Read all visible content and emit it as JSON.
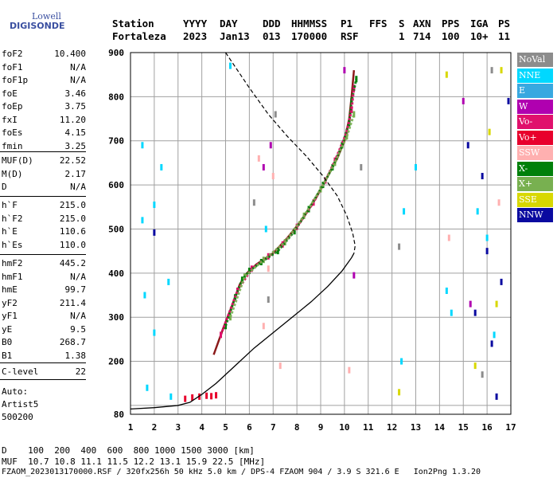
{
  "logo": {
    "top": "Lowell",
    "bottom": "DIGISONDE"
  },
  "header": {
    "row1": [
      "Station",
      "YYYY",
      "DAY",
      "DDD",
      "HHMMSS",
      "P1",
      "FFS",
      "S",
      "AXN",
      "PPS",
      "IGA",
      "PS"
    ],
    "row2": [
      "Fortaleza",
      "2023",
      "Jan13",
      "013",
      "170000",
      "RSF",
      "",
      "1",
      "714",
      "100",
      "10+",
      "11"
    ]
  },
  "params": [
    {
      "k": "foF2",
      "v": "10.400"
    },
    {
      "k": "foF1",
      "v": "N/A"
    },
    {
      "k": "foF1p",
      "v": "N/A"
    },
    {
      "k": "foE",
      "v": "3.46"
    },
    {
      "k": "foEp",
      "v": "3.75"
    },
    {
      "k": "fxI",
      "v": "11.20"
    },
    {
      "k": "foEs",
      "v": "4.15"
    },
    {
      "k": "fmin",
      "v": "3.25"
    },
    {
      "k": "MUF(D)",
      "v": "22.52"
    },
    {
      "k": "M(D)",
      "v": "2.17"
    },
    {
      "k": "D",
      "v": "N/A"
    },
    {
      "k": "h`F",
      "v": "215.0"
    },
    {
      "k": "h`F2",
      "v": "215.0"
    },
    {
      "k": "h`E",
      "v": "110.6"
    },
    {
      "k": "h`Es",
      "v": "110.0"
    },
    {
      "k": "hmF2",
      "v": "445.2"
    },
    {
      "k": "hmF1",
      "v": "N/A"
    },
    {
      "k": "hmE",
      "v": "99.7"
    },
    {
      "k": "yF2",
      "v": "211.4"
    },
    {
      "k": "yF1",
      "v": "N/A"
    },
    {
      "k": "yE",
      "v": "9.5"
    },
    {
      "k": "B0",
      "v": "268.7"
    },
    {
      "k": "B1",
      "v": "1.38"
    },
    {
      "k": "C-level",
      "v": "22"
    }
  ],
  "auto": [
    "Auto:",
    "Artist5",
    "500200"
  ],
  "footer": {
    "line1": "D    100  200  400  600  800 1000 1500 3000 [km]",
    "line2": "MUF  10.7 10.8 11.1 11.5 12.2 13.1 15.9 22.5 [MHz]",
    "line3": "FZAOM_2023013170000.RSF / 320fx256h 50 kHz 5.0 km / DPS-4 FZAOM 904 / 3.9 S 321.6 E   Ion2Png 1.3.20"
  },
  "legend": [
    {
      "label": "NoVal",
      "color": "#8c8c8c"
    },
    {
      "label": "NNE",
      "color": "#00d8ff"
    },
    {
      "label": "E",
      "color": "#38a8e0"
    },
    {
      "label": "W",
      "color": "#b000b0"
    },
    {
      "label": "Vo-",
      "color": "#e0106c"
    },
    {
      "label": "Vo+",
      "color": "#e8002c"
    },
    {
      "label": "SSW",
      "color": "#ffb0b0"
    },
    {
      "label": "X-",
      "color": "#00800a"
    },
    {
      "label": "X+",
      "color": "#78b050"
    },
    {
      "label": "SSE",
      "color": "#d8d800"
    },
    {
      "label": "NNW",
      "color": "#0a0aa0"
    }
  ],
  "chart_data": {
    "type": "scatter",
    "xlim": [
      1,
      17
    ],
    "ylim": [
      80,
      900
    ],
    "x_ticks": [
      1,
      2,
      3,
      4,
      5,
      6,
      7,
      8,
      9,
      10,
      11,
      12,
      13,
      14,
      15,
      16,
      17
    ],
    "y_ticks": [
      80,
      100,
      200,
      300,
      400,
      500,
      600,
      700,
      800,
      900
    ],
    "y_tick_labels": [
      80,
      200,
      300,
      400,
      500,
      600,
      700,
      800,
      900
    ],
    "grid": true,
    "series": [
      {
        "kind": "trace",
        "color": "#8b1a1a",
        "points": [
          [
            4.5,
            215
          ],
          [
            4.9,
            275
          ],
          [
            5.3,
            330
          ],
          [
            5.6,
            375
          ],
          [
            5.9,
            400
          ],
          [
            6.3,
            420
          ],
          [
            7.0,
            445
          ],
          [
            7.6,
            480
          ],
          [
            8.2,
            520
          ],
          [
            8.8,
            570
          ],
          [
            9.3,
            620
          ],
          [
            9.7,
            660
          ],
          [
            10.0,
            700
          ],
          [
            10.2,
            750
          ],
          [
            10.3,
            800
          ],
          [
            10.4,
            860
          ]
        ]
      },
      {
        "kind": "echo",
        "color": "#00800a",
        "points": [
          [
            5.0,
            280
          ],
          [
            5.4,
            345
          ],
          [
            5.7,
            385
          ],
          [
            6.0,
            405
          ],
          [
            6.5,
            425
          ],
          [
            7.2,
            450
          ],
          [
            7.9,
            495
          ],
          [
            8.5,
            545
          ],
          [
            9.1,
            600
          ],
          [
            9.5,
            640
          ],
          [
            9.9,
            690
          ],
          [
            10.2,
            740
          ],
          [
            10.3,
            790
          ],
          [
            10.5,
            840
          ]
        ]
      },
      {
        "kind": "echo",
        "color": "#e0106c",
        "points": [
          [
            4.8,
            260
          ],
          [
            5.5,
            360
          ],
          [
            6.1,
            410
          ],
          [
            6.8,
            438
          ],
          [
            7.4,
            465
          ],
          [
            8.0,
            505
          ],
          [
            8.7,
            560
          ],
          [
            9.2,
            610
          ],
          [
            9.6,
            655
          ],
          [
            10.1,
            720
          ],
          [
            10.3,
            770
          ],
          [
            10.4,
            820
          ]
        ]
      },
      {
        "kind": "echo",
        "color": "#78b050",
        "points": [
          [
            5.2,
            300
          ],
          [
            5.8,
            392
          ],
          [
            6.6,
            430
          ],
          [
            7.5,
            470
          ],
          [
            8.3,
            530
          ],
          [
            9.0,
            590
          ],
          [
            9.6,
            650
          ],
          [
            10.1,
            710
          ],
          [
            10.4,
            760
          ]
        ]
      },
      {
        "kind": "echo",
        "color": "#e8002c",
        "points": [
          [
            3.3,
            115
          ],
          [
            3.6,
            118
          ],
          [
            3.9,
            120
          ],
          [
            4.2,
            122
          ],
          [
            4.4,
            121
          ],
          [
            4.6,
            123
          ]
        ]
      },
      {
        "kind": "echo",
        "color": "#00d8ff",
        "points": [
          [
            1.5,
            690
          ],
          [
            1.5,
            520
          ],
          [
            1.6,
            350
          ],
          [
            1.7,
            140
          ],
          [
            2.0,
            555
          ],
          [
            2.0,
            265
          ],
          [
            2.3,
            640
          ],
          [
            2.6,
            380
          ],
          [
            2.7,
            120
          ],
          [
            5.2,
            870
          ],
          [
            6.7,
            500
          ],
          [
            12.5,
            540
          ],
          [
            12.4,
            200
          ],
          [
            13.0,
            640
          ],
          [
            14.3,
            360
          ],
          [
            14.5,
            310
          ],
          [
            15.6,
            540
          ],
          [
            16.0,
            480
          ],
          [
            16.3,
            260
          ]
        ]
      },
      {
        "kind": "echo",
        "color": "#0a0aa0",
        "points": [
          [
            2.0,
            492
          ],
          [
            15.2,
            690
          ],
          [
            15.5,
            310
          ],
          [
            15.8,
            620
          ],
          [
            16.0,
            450
          ],
          [
            16.2,
            240
          ],
          [
            16.4,
            120
          ],
          [
            16.6,
            380
          ],
          [
            16.9,
            790
          ]
        ]
      },
      {
        "kind": "echo",
        "color": "#d8d800",
        "points": [
          [
            12.3,
            130
          ],
          [
            14.3,
            850
          ],
          [
            15.5,
            190
          ],
          [
            16.1,
            720
          ],
          [
            16.4,
            330
          ],
          [
            16.6,
            860
          ]
        ]
      },
      {
        "kind": "echo",
        "color": "#ffb0b0",
        "points": [
          [
            6.4,
            660
          ],
          [
            6.6,
            280
          ],
          [
            6.8,
            410
          ],
          [
            7.0,
            620
          ],
          [
            7.3,
            190
          ],
          [
            10.2,
            180
          ],
          [
            14.4,
            480
          ],
          [
            16.5,
            560
          ]
        ]
      },
      {
        "kind": "echo",
        "color": "#b000b0",
        "points": [
          [
            6.6,
            640
          ],
          [
            6.9,
            690
          ],
          [
            10.0,
            860
          ],
          [
            10.4,
            395
          ],
          [
            15.0,
            790
          ],
          [
            15.3,
            330
          ]
        ]
      },
      {
        "kind": "echo",
        "color": "#8c8c8c",
        "points": [
          [
            6.2,
            560
          ],
          [
            6.8,
            340
          ],
          [
            7.1,
            760
          ],
          [
            10.7,
            640
          ],
          [
            12.3,
            460
          ],
          [
            15.8,
            170
          ],
          [
            16.2,
            860
          ]
        ]
      }
    ],
    "profile_solid": [
      [
        1.0,
        92
      ],
      [
        2.0,
        95
      ],
      [
        3.0,
        100
      ],
      [
        3.5,
        107
      ],
      [
        4.0,
        125
      ],
      [
        4.6,
        150
      ],
      [
        5.4,
        190
      ],
      [
        6.2,
        230
      ],
      [
        7.0,
        265
      ],
      [
        7.8,
        300
      ],
      [
        8.6,
        335
      ],
      [
        9.3,
        370
      ],
      [
        9.9,
        405
      ],
      [
        10.3,
        435
      ],
      [
        10.4,
        445
      ]
    ],
    "profile_dashed": [
      [
        5.0,
        900
      ],
      [
        6.0,
        820
      ],
      [
        6.8,
        760
      ],
      [
        7.6,
        710
      ],
      [
        8.4,
        665
      ],
      [
        9.1,
        620
      ],
      [
        9.7,
        575
      ],
      [
        10.1,
        530
      ],
      [
        10.35,
        490
      ],
      [
        10.45,
        462
      ],
      [
        10.4,
        445
      ]
    ]
  }
}
